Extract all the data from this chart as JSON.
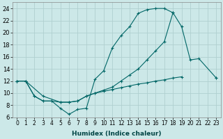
{
  "bg_color": "#cce8e8",
  "grid_color": "#b0d0d0",
  "line_color": "#006666",
  "xlabel": "Humidex (Indice chaleur)",
  "xlim": [
    -0.5,
    23.5
  ],
  "ylim": [
    6,
    25
  ],
  "yticks": [
    6,
    8,
    10,
    12,
    14,
    16,
    18,
    20,
    22,
    24
  ],
  "xticks": [
    0,
    1,
    2,
    3,
    4,
    5,
    6,
    7,
    8,
    9,
    10,
    11,
    12,
    13,
    14,
    15,
    16,
    17,
    18,
    19,
    20,
    21,
    22,
    23
  ],
  "line1_x": [
    0,
    1,
    2,
    3,
    4,
    5,
    6,
    7,
    8,
    9,
    10,
    11,
    12,
    13,
    14,
    15,
    16,
    17,
    18
  ],
  "line1_y": [
    12,
    12,
    9.5,
    8.7,
    8.7,
    7.5,
    6.5,
    7.3,
    7.5,
    12.3,
    13.7,
    17.5,
    19.5,
    21.0,
    23.2,
    23.8,
    24.0,
    24.0,
    23.3
  ],
  "line2_x": [
    0,
    1,
    2,
    3,
    4,
    5,
    6,
    7,
    8,
    9,
    10,
    11,
    12,
    13,
    14,
    15,
    16,
    17,
    18,
    19,
    20,
    21,
    23
  ],
  "line2_y": [
    12,
    12,
    9.5,
    8.7,
    8.7,
    8.5,
    8.5,
    8.7,
    9.5,
    10.0,
    10.5,
    11.0,
    12.0,
    13.0,
    14.0,
    15.5,
    17.0,
    18.5,
    23.3,
    21.0,
    15.5,
    15.7,
    12.5
  ],
  "line3_x": [
    0,
    1,
    3,
    5,
    6,
    7,
    8,
    9,
    10,
    11,
    12,
    13,
    14,
    15,
    16,
    17,
    18,
    19,
    20,
    21,
    22,
    23
  ],
  "line3_y": [
    12,
    12,
    9.5,
    8.5,
    8.5,
    8.7,
    9.5,
    10.0,
    10.3,
    10.6,
    10.9,
    11.2,
    11.5,
    11.7,
    12.0,
    12.2,
    12.5,
    12.7,
    null,
    null,
    null,
    12.5
  ]
}
